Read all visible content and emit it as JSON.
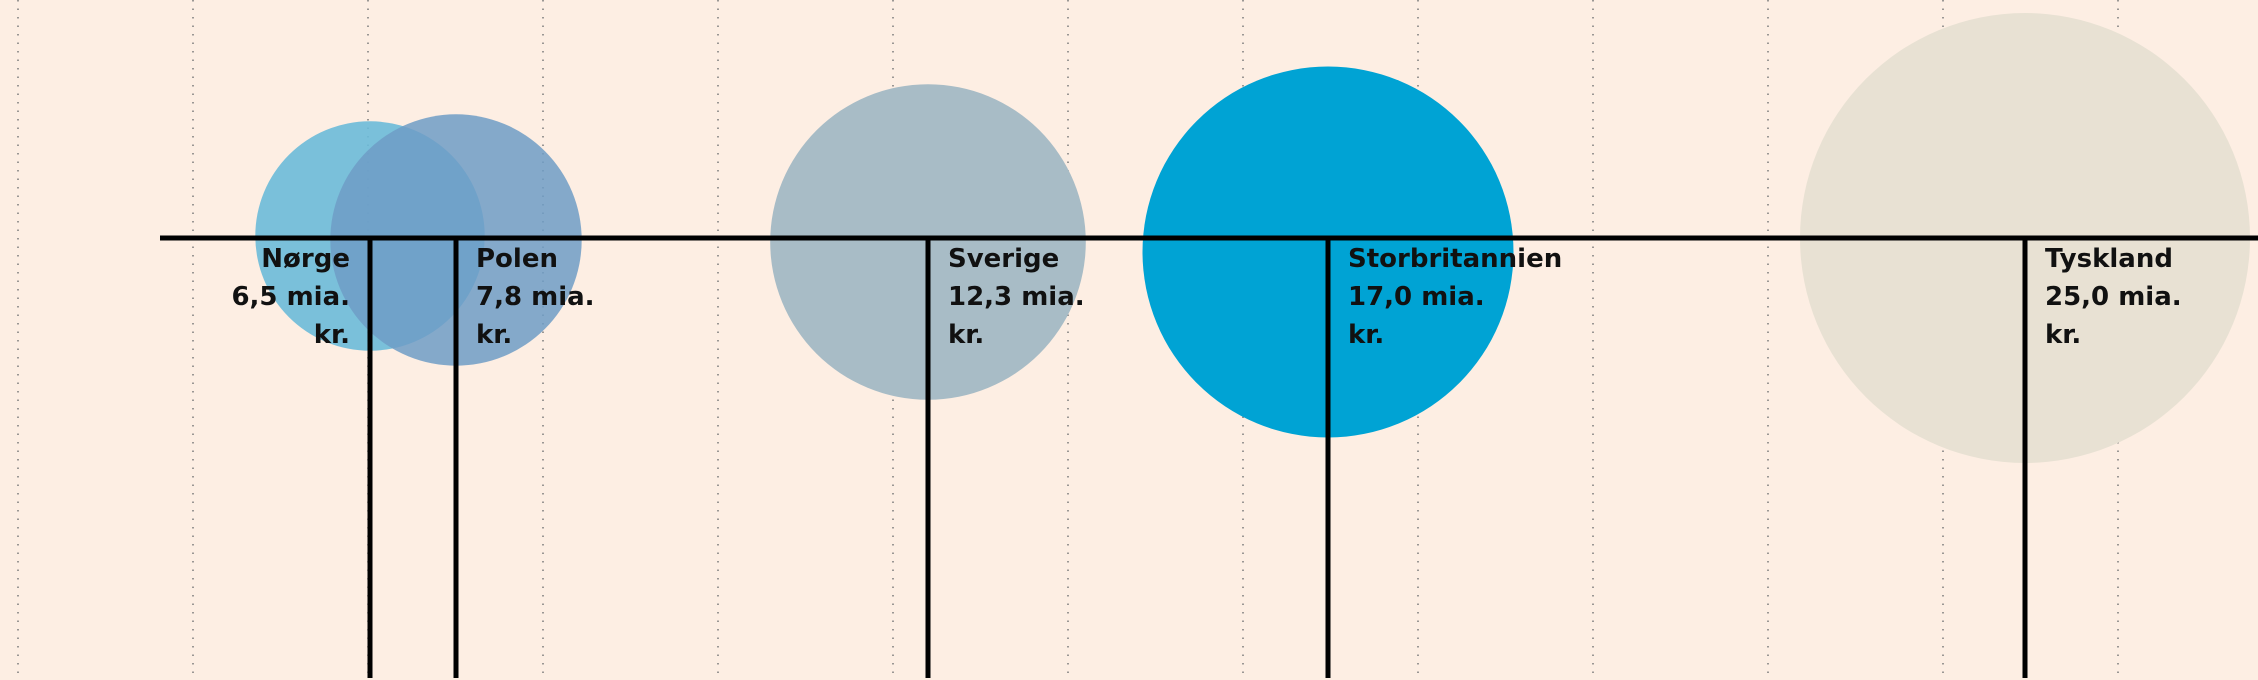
{
  "chart_data": {
    "type": "bubble",
    "points": [
      {
        "country": "Nørge",
        "value": 6.5,
        "value_text": "6,5 mia.",
        "unit": "kr.",
        "color": "#6cbad8",
        "label_align": "right"
      },
      {
        "country": "Polen",
        "value": 7.8,
        "value_text": "7,8 mia.",
        "unit": "kr.",
        "color": "#6f9cc6",
        "label_align": "left"
      },
      {
        "country": "Sverige",
        "value": 12.3,
        "value_text": "12,3 mia.",
        "unit": "kr.",
        "color": "#a8bcc6",
        "label_align": "left"
      },
      {
        "country": "Storbritannien",
        "value": 17.0,
        "value_text": "17,0 mia.",
        "unit": "kr.",
        "color": "#00a3d4",
        "label_align": "left"
      },
      {
        "country": "Tyskland",
        "value": 25.0,
        "value_text": "25,0 mia.",
        "unit": "kr.",
        "color": "#e8e1d3",
        "label_align": "left"
      }
    ],
    "grid": true
  },
  "colors": {
    "background": "#fdeee3",
    "axis": "#000000",
    "grid": "#7a7a7a",
    "text": "#111111"
  }
}
